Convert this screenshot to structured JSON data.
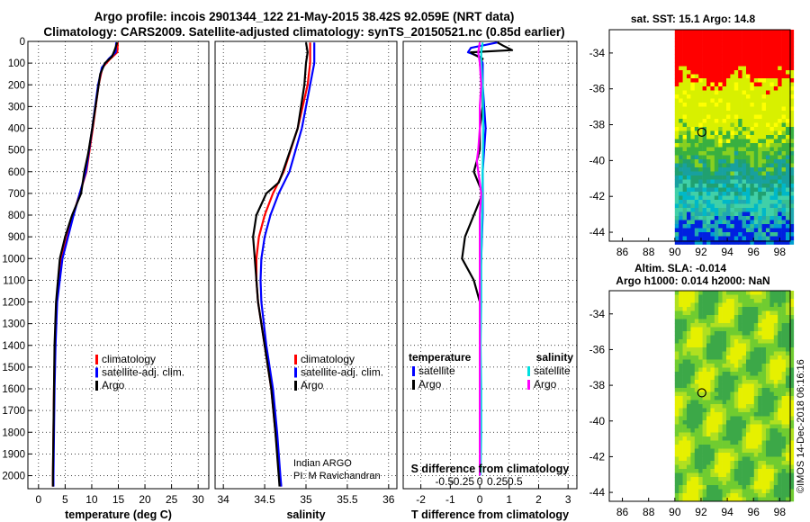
{
  "titles": {
    "line1": "Argo profile: incois 2901344_122 21-May-2015 38.42S 92.059E (NRT data)",
    "line2": "Climatology: CARS2009. Satellite-adjusted climatology: synTS_20150521.nc (0.85d earlier)"
  },
  "colors": {
    "climatology": "#ff0000",
    "satellite": "#0000ff",
    "argo": "#000000",
    "sat_salinity": "#00e0e0",
    "argo_salinity": "#ff00ff"
  },
  "chart_data": [
    {
      "type": "line",
      "id": "temperature",
      "xlabel": "temperature (deg C)",
      "xlim": [
        -2,
        32
      ],
      "ylim": [
        2060,
        0
      ],
      "yticks": [
        0,
        100,
        200,
        300,
        400,
        500,
        600,
        700,
        800,
        900,
        1000,
        1100,
        1200,
        1300,
        1400,
        1500,
        1600,
        1700,
        1800,
        1900,
        2000
      ],
      "xticks": [
        0,
        5,
        10,
        15,
        20,
        25,
        30
      ],
      "legend": [
        "climatology",
        "satellite-adj. clim.",
        "Argo"
      ],
      "series": [
        {
          "name": "climatology",
          "color": "#ff0000",
          "depth": [
            5,
            50,
            80,
            120,
            200,
            400,
            600,
            800,
            1000,
            1200,
            1400,
            1600,
            1800,
            2000,
            2050
          ],
          "values": [
            14.9,
            14.8,
            13.5,
            12.0,
            11.3,
            10.2,
            9.0,
            6.5,
            4.3,
            3.4,
            3.1,
            2.9,
            2.8,
            2.7,
            2.7
          ]
        },
        {
          "name": "satellite-adj. clim.",
          "color": "#0000ff",
          "depth": [
            5,
            50,
            80,
            120,
            200,
            400,
            600,
            800,
            1000,
            1200,
            1400,
            1600,
            1800,
            2000,
            2050
          ],
          "values": [
            14.6,
            14.5,
            13.2,
            11.9,
            11.2,
            10.1,
            8.9,
            6.6,
            4.5,
            3.5,
            3.2,
            3.0,
            2.9,
            2.8,
            2.8
          ]
        },
        {
          "name": "Argo",
          "color": "#000000",
          "depth": [
            5,
            40,
            70,
            100,
            150,
            250,
            400,
            520,
            600,
            700,
            800,
            900,
            1000,
            1200,
            1400,
            1600,
            1800,
            2000,
            2050
          ],
          "values": [
            14.8,
            14.3,
            13.8,
            12.5,
            11.6,
            11.0,
            10.1,
            9.3,
            8.6,
            8.0,
            6.3,
            5.0,
            4.0,
            3.3,
            3.0,
            2.9,
            2.8,
            2.7,
            2.7
          ]
        }
      ]
    },
    {
      "type": "line",
      "id": "salinity",
      "xlabel": "salinity",
      "xlim": [
        33.9,
        36.1
      ],
      "ylim": [
        2060,
        0
      ],
      "xticks": [
        34,
        34.5,
        35,
        35.5,
        36
      ],
      "legend": [
        "climatology",
        "satellite-adj. clim.",
        "Argo"
      ],
      "annotations": [
        "Indian ARGO",
        "PI: M Ravichandran"
      ],
      "series": [
        {
          "name": "climatology",
          "color": "#ff0000",
          "depth": [
            5,
            100,
            200,
            400,
            600,
            700,
            800,
            900,
            1000,
            1100,
            1200,
            1400,
            1600,
            1800,
            2000,
            2050
          ],
          "values": [
            35.05,
            35.05,
            35.02,
            34.9,
            34.73,
            34.6,
            34.5,
            34.43,
            34.4,
            34.4,
            34.42,
            34.5,
            34.58,
            34.63,
            34.68,
            34.7
          ]
        },
        {
          "name": "satellite-adj. clim.",
          "color": "#0000ff",
          "depth": [
            5,
            100,
            200,
            400,
            600,
            700,
            800,
            900,
            1000,
            1100,
            1200,
            1400,
            1600,
            1800,
            2000,
            2050
          ],
          "values": [
            35.1,
            35.1,
            35.05,
            34.95,
            34.8,
            34.67,
            34.57,
            34.5,
            34.46,
            34.45,
            34.46,
            34.52,
            34.6,
            34.65,
            34.69,
            34.7
          ]
        },
        {
          "name": "Argo",
          "color": "#000000",
          "depth": [
            5,
            50,
            100,
            200,
            400,
            600,
            650,
            700,
            800,
            900,
            1000,
            1100,
            1200,
            1400,
            1600,
            1800,
            2000,
            2050
          ],
          "values": [
            35.0,
            35.02,
            35.0,
            34.98,
            34.9,
            34.72,
            34.67,
            34.52,
            34.4,
            34.36,
            34.38,
            34.4,
            34.42,
            34.5,
            34.58,
            34.63,
            34.67,
            34.68
          ]
        }
      ]
    },
    {
      "type": "line",
      "id": "difference",
      "xlabel": "T difference from climatology",
      "xlabel_top": "S difference from climatology",
      "xlim": [
        -2.6,
        3.3
      ],
      "ylim": [
        2060,
        0
      ],
      "xticks": [
        -2,
        -1,
        0,
        1,
        2,
        3
      ],
      "xticks_labels": [
        "-2",
        "-1",
        "0",
        "1",
        "2",
        "3"
      ],
      "xticks_salinity": [
        -0.5,
        -0.25,
        0,
        0.25,
        0.5
      ],
      "xticks_salinity_labels": [
        "-0.5",
        "-0.25",
        "0",
        "0.25",
        "0.5"
      ],
      "legend_headers": [
        "temperature",
        "salinity"
      ],
      "legend": [
        "satellite",
        "Argo",
        "satellite",
        "Argo"
      ],
      "series": [
        {
          "name": "T satellite",
          "color": "#0000ff",
          "depth": [
            5,
            30,
            50,
            70,
            100,
            200,
            400,
            600,
            800,
            1000,
            1200,
            1400,
            1600,
            1800,
            2000
          ],
          "values": [
            0.6,
            -0.3,
            -0.4,
            0.0,
            0.1,
            0.1,
            0.2,
            0.1,
            0.1,
            0.05,
            0.0,
            0.0,
            0.0,
            0.0,
            0.0
          ]
        },
        {
          "name": "T Argo",
          "color": "#000000",
          "depth": [
            5,
            20,
            40,
            50,
            60,
            80,
            100,
            150,
            200,
            300,
            400,
            500,
            600,
            700,
            800,
            900,
            1000,
            1100,
            1200,
            1400,
            1600,
            1800,
            2000
          ],
          "values": [
            0.6,
            0.8,
            1.1,
            -0.3,
            -0.2,
            0.1,
            0.0,
            0.05,
            0.1,
            0.1,
            0.0,
            0.0,
            -0.2,
            0.1,
            -0.2,
            -0.5,
            -0.6,
            -0.2,
            0.0,
            0.0,
            0.0,
            0.0,
            0.0
          ]
        },
        {
          "name": "S satellite",
          "color": "#00e0e0",
          "depth": [
            5,
            50,
            100,
            200,
            400,
            600,
            800,
            1000,
            1200,
            1400,
            1600,
            1800,
            2000
          ],
          "values": [
            0.1,
            0.05,
            0.05,
            0.1,
            0.12,
            0.1,
            0.08,
            0.05,
            0.05,
            0.03,
            0.05,
            0.05,
            0.03
          ]
        },
        {
          "name": "S Argo",
          "color": "#ff00ff",
          "depth": [
            5,
            50,
            100,
            200,
            300,
            400,
            500,
            550,
            600,
            650,
            700,
            800,
            900,
            1000,
            1200,
            1400,
            1600,
            1800,
            2000
          ],
          "values": [
            0.0,
            -0.05,
            0.0,
            0.05,
            0.0,
            0.0,
            -0.05,
            -0.1,
            -0.05,
            0.0,
            0.05,
            0.0,
            0.0,
            0.0,
            0.0,
            0.0,
            0.0,
            0.0,
            0.0
          ]
        }
      ]
    },
    {
      "type": "heatmap",
      "id": "sst_map",
      "title": "sat. SST: 15.1 Argo: 14.8",
      "xticks": [
        86,
        88,
        90,
        92,
        94,
        96,
        98
      ],
      "yticks": [
        -34,
        -36,
        -38,
        -40,
        -42,
        -44
      ],
      "xlim": [
        85,
        98.8
      ],
      "ylim": [
        -44.5,
        -32.7
      ],
      "data_start_lon": 90,
      "argo_position": [
        92.059,
        -38.42
      ]
    },
    {
      "type": "heatmap",
      "id": "sla_map",
      "title_line1": "Altim. SLA: -0.014",
      "title_line2": "Argo h1000: 0.014 h2000: NaN",
      "xticks": [
        86,
        88,
        90,
        92,
        94,
        96,
        98
      ],
      "yticks": [
        -34,
        -36,
        -38,
        -40,
        -42,
        -44
      ],
      "xlim": [
        85,
        98.8
      ],
      "ylim": [
        -44.5,
        -32.7
      ],
      "data_start_lon": 90,
      "argo_position": [
        92.059,
        -38.42
      ]
    }
  ],
  "credit": "©IMOS 14-Dec-2018 06:16:16"
}
